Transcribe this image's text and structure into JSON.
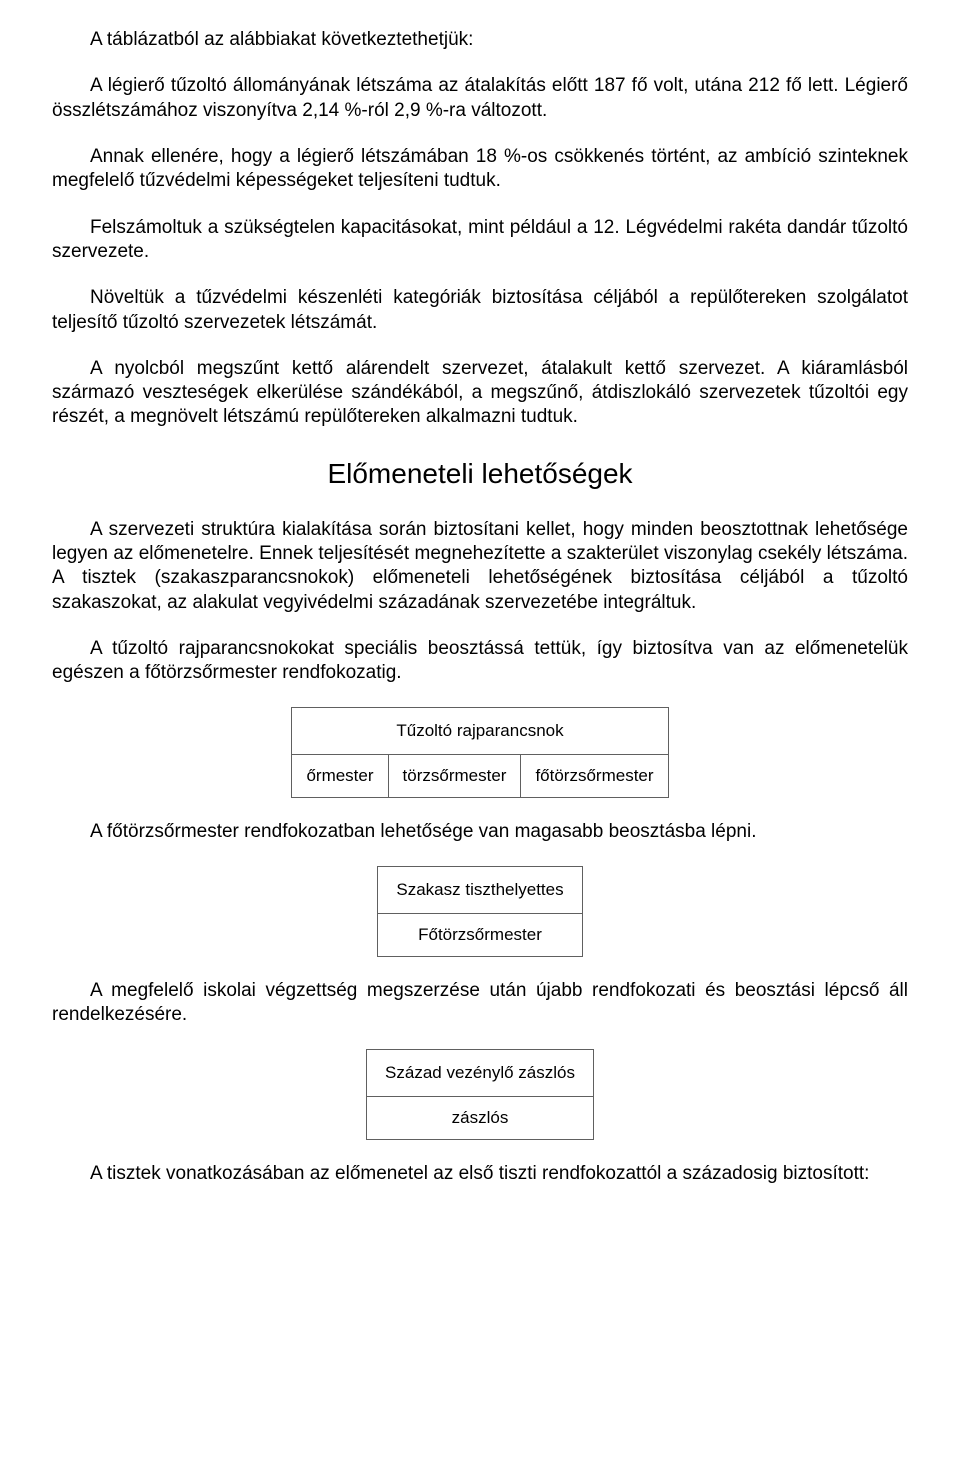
{
  "colors": {
    "text": "#000000",
    "background": "#ffffff",
    "border": "#606060"
  },
  "fonts": {
    "body_family": "Arial",
    "body_size_pt": 14,
    "heading_size_pt": 21,
    "table_size_pt": 13
  },
  "paragraphs": {
    "p1": "A táblázatból az alábbiakat következtethetjük:",
    "p2": "A légierő tűzoltó állományának létszáma az átalakítás előtt 187 fő volt, utána 212 fő lett. Légierő összlétszámához viszonyítva 2,14 %-ról 2,9 %-ra változott.",
    "p3": "Annak ellenére, hogy a légierő létszámában 18 %-os csökkenés történt, az ambíció szinteknek megfelelő tűzvédelmi képességeket teljesíteni tudtuk.",
    "p4": "Felszámoltuk a szükségtelen kapacitásokat, mint például a 12. Légvédelmi rakéta dandár tűzoltó szervezete.",
    "p5": "Növeltük a tűzvédelmi készenléti kategóriák biztosítása céljából a repülőtereken szolgálatot teljesítő tűzoltó szervezetek létszámát.",
    "p6": "A nyolcból megszűnt kettő alárendelt szervezet, átalakult kettő szervezet. A kiáramlásból származó veszteségek elkerülése szándékából, a megszűnő, átdiszlokáló szervezetek tűzoltói egy részét, a megnövelt létszámú repülőtereken alkalmazni tudtuk.",
    "heading": "Előmeneteli lehetőségek",
    "p7": "A szervezeti struktúra kialakítása során biztosítani kellet, hogy minden beosztottnak lehetősége legyen az előmenetelre. Ennek teljesítését megnehezítette a szakterület viszonylag csekély létszáma. A tisztek (szakaszparancsnokok) előmeneteli lehetőségének biztosítása céljából a tűzoltó szakaszokat, az alakulat vegyivédelmi századának szervezetébe integráltuk.",
    "p8": "A tűzoltó rajparancsnokokat speciális beosztássá tettük, így biztosítva van az előmenetelük egészen a főtörzsőrmester rendfokozatig.",
    "p9": "A főtörzsőrmester rendfokozatban lehetősége van magasabb beosztásba lépni.",
    "p10": "A megfelelő iskolai végzettség megszerzése után újabb rendfokozati és beosztási lépcső áll rendelkezésére.",
    "p11": "A tisztek vonatkozásában az előmenetel az első tiszti rendfokozattól a századosig biztosított:"
  },
  "table1": {
    "header": "Tűzoltó rajparancsnok",
    "cells": [
      "őrmester",
      "törzsőrmester",
      "főtörzsőrmester"
    ]
  },
  "table2": {
    "row1": "Szakasz tiszthelyettes",
    "row2": "Főtörzsőrmester"
  },
  "table3": {
    "row1": "Század vezénylő zászlós",
    "row2": "zászlós"
  }
}
